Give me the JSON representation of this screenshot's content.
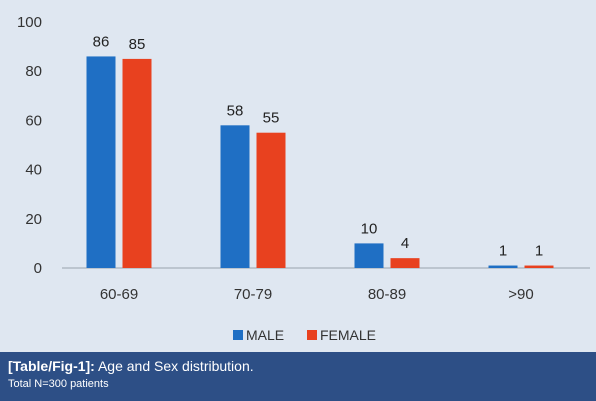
{
  "caption": {
    "ref": "[Table/Fig-1]:",
    "title": "Age and Sex distribution.",
    "note": "Total N=300 patients"
  },
  "colors": {
    "male": "#1f6fc4",
    "female": "#e8411f",
    "panel": "#dfe7f1",
    "caption_bg": "#2d4f86",
    "axis": "#9aa3ad"
  },
  "chart_data": {
    "type": "bar",
    "categories": [
      "60-69",
      "70-79",
      "80-89",
      ">90"
    ],
    "series": [
      {
        "name": "MALE",
        "values": [
          86,
          58,
          10,
          1
        ]
      },
      {
        "name": "FEMALE",
        "values": [
          85,
          55,
          4,
          1
        ]
      }
    ],
    "ylim": [
      0,
      100
    ],
    "yticks": [
      "0",
      "20",
      "40",
      "60",
      "80",
      "100"
    ],
    "ytick_values": [
      0,
      20,
      40,
      60,
      80,
      100
    ],
    "grid": false,
    "legend_position": "bottom-center"
  }
}
